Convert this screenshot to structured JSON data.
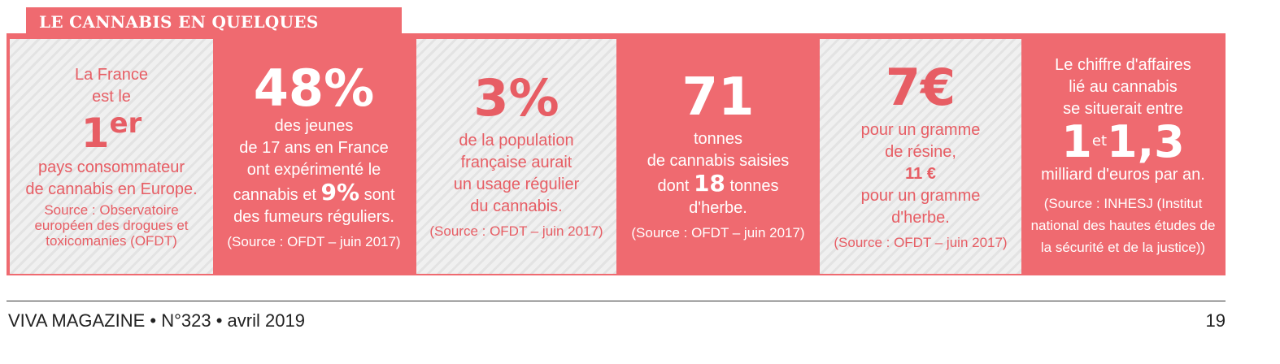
{
  "header": {
    "title": "LE CANNABIS EN QUELQUES CHIFFRES"
  },
  "cards": [
    {
      "intro1": "La France",
      "intro2": "est le",
      "big": "1",
      "sup": "er",
      "text1": "pays consommateur",
      "text2": "de cannabis en Europe.",
      "src1": "Source : Observatoire",
      "src2": "européen des drogues et",
      "src3": "toxicomanies (OFDT)"
    },
    {
      "big": "48%",
      "text1": "des jeunes",
      "text2": "de 17 ans en France",
      "text3": "ont expérimenté le",
      "text4a": "cannabis et ",
      "text4b": "9%",
      "text4c": " sont",
      "text5": "des fumeurs réguliers.",
      "src": "(Source : OFDT – juin 2017)"
    },
    {
      "big": "3%",
      "text1": "de la population",
      "text2": "française aurait",
      "text3": "un usage régulier",
      "text4": "du cannabis.",
      "src": "(Source : OFDT – juin 2017)"
    },
    {
      "big": "71",
      "text1": "tonnes",
      "text2": "de cannabis saisies",
      "text3a": "dont ",
      "text3b": "18",
      "text3c": " tonnes",
      "text4": "d'herbe.",
      "src": "(Source : OFDT – juin 2017)"
    },
    {
      "big": "7€",
      "text1": "pour un gramme",
      "text2": "de résine,",
      "mid": "11 €",
      "text3": "pour un gramme",
      "text4": "d'herbe.",
      "src": "(Source : OFDT – juin 2017)"
    },
    {
      "text1": "Le chiffre d'affaires",
      "text2": "lié au cannabis",
      "text3": "se situerait entre",
      "big1": "1",
      "and": "et",
      "big2": "1,3",
      "text4": "milliard d'euros par an.",
      "src1": "(Source : INHESJ (Institut",
      "src2": "national des hautes études de",
      "src3": "la sécurité et de la justice))"
    }
  ],
  "footer": {
    "left": "VIVA MAGAZINE • N°323 • avril 2019",
    "page": "19"
  },
  "colors": {
    "accent": "#ef6a70",
    "light_bg": "#f0f0f0",
    "text_red": "#e75d64"
  }
}
